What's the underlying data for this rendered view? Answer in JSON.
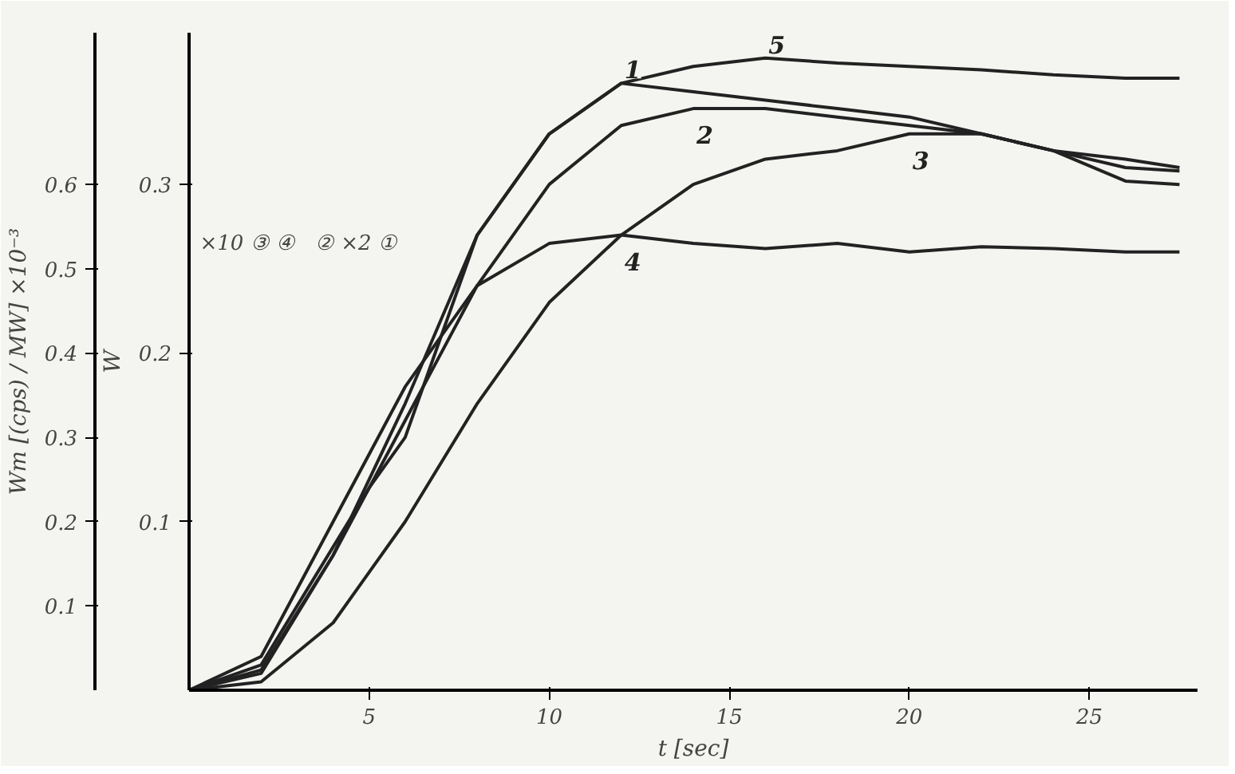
{
  "chart_data": {
    "type": "line",
    "xlabel": "t [sec]",
    "ylabel": "W",
    "y2label": "Wm [(cps) / MW] ×10⁻³",
    "annotations": [
      "×10 ③ ④",
      "② ×2 ①"
    ],
    "x": [
      0,
      2,
      4,
      5,
      6,
      8,
      10,
      12,
      14,
      16,
      18,
      20,
      22,
      24,
      26,
      27.5
    ],
    "series": [
      {
        "name": "1",
        "color": "#222222",
        "values": [
          0,
          0.012,
          0.08,
          0.125,
          0.17,
          0.27,
          0.33,
          0.36,
          0.355,
          0.35,
          0.345,
          0.34,
          0.33,
          0.32,
          0.302,
          0.3
        ]
      },
      {
        "name": "2",
        "color": "#222222",
        "values": [
          0,
          0.015,
          0.085,
          0.12,
          0.16,
          0.24,
          0.3,
          0.335,
          0.345,
          0.345,
          0.34,
          0.335,
          0.33,
          0.32,
          0.31,
          0.308
        ]
      },
      {
        "name": "3",
        "color": "#222222",
        "values": [
          0,
          0.005,
          0.04,
          0.07,
          0.1,
          0.17,
          0.23,
          0.27,
          0.3,
          0.315,
          0.32,
          0.33,
          0.33,
          0.32,
          0.315,
          0.31
        ]
      },
      {
        "name": "4",
        "color": "#222222",
        "values": [
          0,
          0.02,
          0.1,
          0.14,
          0.18,
          0.24,
          0.265,
          0.27,
          0.265,
          0.262,
          0.265,
          0.26,
          0.263,
          0.262,
          0.26,
          0.26
        ]
      },
      {
        "name": "5",
        "color": "#222222",
        "values": [
          0,
          0.01,
          0.08,
          0.12,
          0.15,
          0.27,
          0.33,
          0.36,
          0.37,
          0.375,
          0.372,
          0.37,
          0.368,
          0.365,
          0.363,
          0.363
        ]
      }
    ],
    "xlim": [
      0,
      28
    ],
    "ylim": [
      0,
      0.39
    ],
    "y2lim": [
      0,
      0.78
    ],
    "xticks": [
      5,
      10,
      15,
      20,
      25
    ],
    "yticks": [
      0.1,
      0.2,
      0.3
    ],
    "y2ticks": [
      0.1,
      0.2,
      0.3,
      0.4,
      0.5,
      0.6
    ],
    "grid": false,
    "marker": "none",
    "line_style": "solid"
  }
}
